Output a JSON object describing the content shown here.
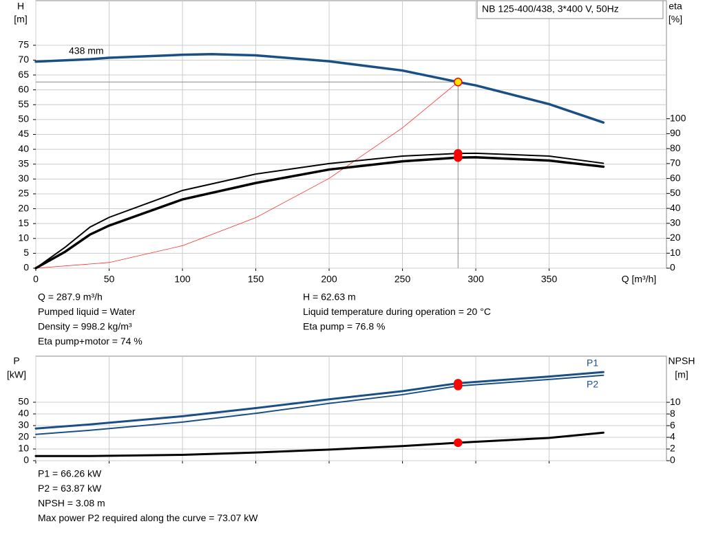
{
  "chart_data": [
    {
      "type": "line",
      "title": "NB 125-400/438, 3*400 V, 50Hz",
      "y_label": "H",
      "y_unit": "[m]",
      "y2_label": "eta",
      "y2_unit": "[%]",
      "x_label": "Q [m³/h]",
      "xlim": [
        0,
        430
      ],
      "xticks": [
        0,
        50,
        100,
        150,
        200,
        250,
        300,
        350
      ],
      "ylim": [
        0,
        90
      ],
      "yticks": [
        0,
        5,
        10,
        15,
        20,
        25,
        30,
        35,
        40,
        45,
        50,
        55,
        60,
        65,
        70,
        75
      ],
      "y2lim": [
        0,
        179
      ],
      "y2ticks": [
        0,
        10,
        20,
        30,
        40,
        50,
        60,
        70,
        80,
        90,
        100
      ],
      "grid": true,
      "operating_point": {
        "x": 287.9,
        "y": 62.63
      },
      "series": [
        {
          "name": "438 mm",
          "color": "#1a4f86",
          "line_width": 3.5,
          "marker_color": "#ffe600",
          "x": [
            0,
            37,
            50,
            100,
            120,
            150,
            200,
            250,
            287.9,
            300,
            350,
            387
          ],
          "values": [
            69.5,
            70.3,
            70.8,
            71.8,
            72,
            71.6,
            69.6,
            66.5,
            62.63,
            61.5,
            55.2,
            49
          ]
        },
        {
          "color": "#ff2a2a",
          "line_width": 0.8,
          "x": [
            0,
            50,
            100,
            150,
            200,
            250,
            287.9
          ],
          "values": [
            0,
            1.89,
            7.56,
            17.0,
            30.2,
            47.2,
            62.63
          ]
        },
        {
          "color": "#000000",
          "line_width": 2,
          "axis": "y2",
          "marker_color": "#ff0000",
          "x": [
            0,
            20,
            37,
            50,
            100,
            150,
            200,
            250,
            287.9,
            300,
            350,
            387
          ],
          "values": [
            0,
            14,
            27.5,
            34,
            52,
            63,
            70,
            75,
            76.8,
            76.9,
            75,
            70.2
          ]
        },
        {
          "color": "#000000",
          "line_width": 3.5,
          "axis": "y2",
          "marker_color": "#ff0000",
          "x": [
            0,
            20,
            37,
            50,
            100,
            150,
            200,
            250,
            287.9,
            300,
            350,
            387
          ],
          "values": [
            0,
            11,
            22.5,
            28.5,
            46,
            57,
            66,
            71.5,
            74,
            74.2,
            72,
            67.9
          ]
        }
      ],
      "notes": [
        [
          "Q = 287.9 m³/h",
          "Pumped liquid = Water",
          "Density = 998.2 kg/m³",
          "Eta pump+motor = 74 %"
        ],
        [
          "H = 62.63 m",
          "Liquid temperature during operation = 20 °C",
          "Eta pump = 76.8 %"
        ]
      ]
    },
    {
      "type": "line",
      "y_label": "P",
      "y_unit": "[kW]",
      "y2_label": "NPSH",
      "y2_unit": "[m]",
      "xlim": [
        0,
        430
      ],
      "xticks": [
        0,
        50,
        100,
        150,
        200,
        250,
        300,
        350
      ],
      "ylim": [
        0,
        89.4
      ],
      "yticks": [
        0,
        10,
        20,
        30,
        40,
        50
      ],
      "y2lim": [
        0,
        17.9
      ],
      "y2ticks": [
        0,
        2,
        4,
        6,
        8,
        10
      ],
      "grid": true,
      "operating_point": {
        "x": 287.9
      },
      "series": [
        {
          "name": "P1",
          "color": "#1a4f86",
          "line_width": 3,
          "marker_color": "#ff0000",
          "x": [
            0,
            37,
            100,
            150,
            200,
            250,
            287.9,
            350,
            387
          ],
          "values": [
            27.5,
            31,
            38,
            45,
            52.5,
            59.5,
            66.26,
            72,
            75.8
          ]
        },
        {
          "name": "P2",
          "color": "#1a4f86",
          "line_width": 2,
          "marker_color": "#ff0000",
          "x": [
            0,
            37,
            100,
            150,
            200,
            250,
            287.9,
            350,
            387
          ],
          "values": [
            22.5,
            26,
            33,
            40.5,
            49,
            56.5,
            63.87,
            69.5,
            73.07
          ]
        },
        {
          "color": "#000000",
          "line_width": 3,
          "axis": "y2",
          "marker_color": "#ff0000",
          "x": [
            0,
            37,
            100,
            150,
            200,
            250,
            287.9,
            350,
            387
          ],
          "values": [
            0.8,
            0.8,
            1.0,
            1.4,
            1.9,
            2.5,
            3.08,
            3.9,
            4.8
          ]
        }
      ],
      "notes": [
        [
          "P1 = 66.26 kW",
          "P2 = 63.87 kW",
          "NPSH = 3.08 m",
          "Max power P2 required along the curve = 73.07 kW"
        ]
      ]
    }
  ]
}
